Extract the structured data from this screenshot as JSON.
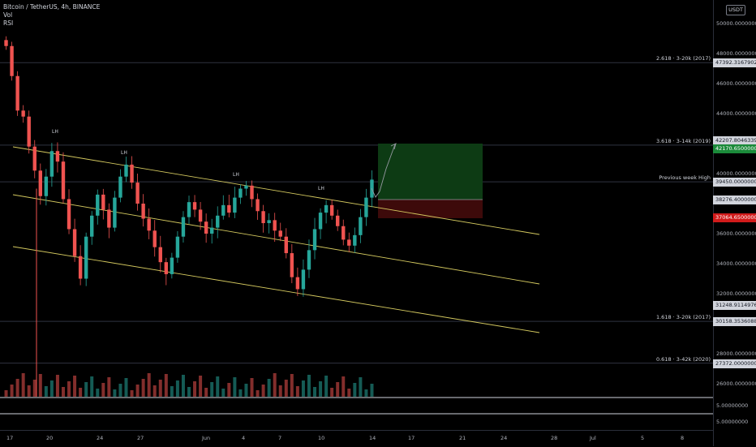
{
  "legend": {
    "symbol": "Bitcoin / TetherUS, 4h, BINANCE",
    "volume": "Vol",
    "rsi": "RSI"
  },
  "currency_button": "USDT",
  "price_ticks": [
    {
      "label": "50000.00000000",
      "price": 50000
    },
    {
      "label": "48000.00000000",
      "price": 48000
    },
    {
      "label": "46000.00000000",
      "price": 46000
    },
    {
      "label": "44000.00000000",
      "price": 44000
    },
    {
      "label": "40000.00000000",
      "price": 40000
    },
    {
      "label": "36000.00000000",
      "price": 36000
    },
    {
      "label": "34000.00000000",
      "price": 34000
    },
    {
      "label": "32000.00000000",
      "price": 32000
    },
    {
      "label": "28000.00000000",
      "price": 28000
    },
    {
      "label": "26000.00000000",
      "price": 26000
    }
  ],
  "rsi_ticks": [
    "5.00000000",
    "5.00000000"
  ],
  "price_tags": [
    {
      "label": "47392.31679027",
      "style": "dark",
      "price": 47392
    },
    {
      "label": "42207.80463396",
      "style": "dark",
      "price": 42207
    },
    {
      "label": "42170.65000000",
      "style": "green",
      "price": 41700
    },
    {
      "label": "39450.00000000",
      "style": "dark",
      "price": 39450
    },
    {
      "label": "38276.40000000",
      "style": "dark",
      "price": 38276
    },
    {
      "label": "37064.65000000",
      "style": "red",
      "price": 37064
    },
    {
      "label": "31248.91149765",
      "style": "dark",
      "price": 31248
    },
    {
      "label": "30158.35360880",
      "style": "dark",
      "price": 30158
    },
    {
      "label": "27372.00000000",
      "style": "dark",
      "price": 27372
    }
  ],
  "levels": [
    {
      "label": "2.618 · 3-20k (2017)",
      "price": 47392
    },
    {
      "label": "3.618 · 3-14k (2019)",
      "price": 41900
    },
    {
      "label": "Previous week High",
      "price": 39450
    },
    {
      "label": "1.618 · 3-20k (2017)",
      "price": 30158
    },
    {
      "label": "0.618 · 3-42k (2020)",
      "price": 27372
    }
  ],
  "annotations": [
    "LH",
    "LH",
    "LH",
    "LH"
  ],
  "time_labels": [
    "17",
    "20",
    "24",
    "27",
    "Jun",
    "4",
    "7",
    "10",
    "14",
    "17",
    "21",
    "24",
    "28",
    "Jul",
    "5",
    "8"
  ],
  "colors": {
    "up": "#26a69a",
    "down": "#ef5350",
    "channel": "#d4c95f",
    "target_zone": "#0d3b14",
    "stop_zone": "#3d0a0a"
  }
}
